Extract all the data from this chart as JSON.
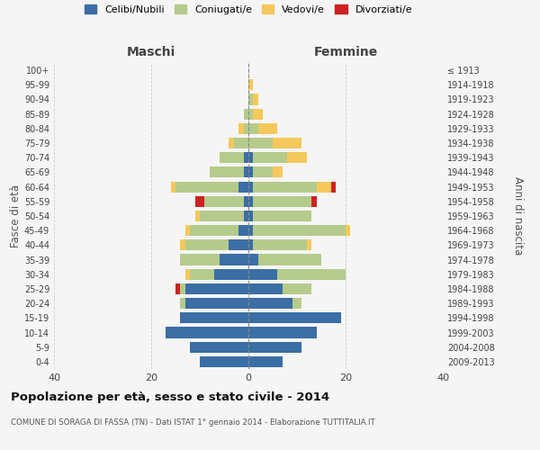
{
  "age_groups": [
    "0-4",
    "5-9",
    "10-14",
    "15-19",
    "20-24",
    "25-29",
    "30-34",
    "35-39",
    "40-44",
    "45-49",
    "50-54",
    "55-59",
    "60-64",
    "65-69",
    "70-74",
    "75-79",
    "80-84",
    "85-89",
    "90-94",
    "95-99",
    "100+"
  ],
  "birth_years": [
    "2009-2013",
    "2004-2008",
    "1999-2003",
    "1994-1998",
    "1989-1993",
    "1984-1988",
    "1979-1983",
    "1974-1978",
    "1969-1973",
    "1964-1968",
    "1959-1963",
    "1954-1958",
    "1949-1953",
    "1944-1948",
    "1939-1943",
    "1934-1938",
    "1929-1933",
    "1924-1928",
    "1919-1923",
    "1914-1918",
    "≤ 1913"
  ],
  "males": {
    "celibi": [
      10,
      12,
      17,
      14,
      13,
      13,
      7,
      6,
      4,
      2,
      1,
      1,
      2,
      1,
      1,
      0,
      0,
      0,
      0,
      0,
      0
    ],
    "coniugati": [
      0,
      0,
      0,
      0,
      1,
      1,
      5,
      8,
      9,
      10,
      9,
      8,
      13,
      7,
      5,
      3,
      1,
      1,
      0,
      0,
      0
    ],
    "vedovi": [
      0,
      0,
      0,
      0,
      0,
      0,
      1,
      0,
      1,
      1,
      1,
      0,
      1,
      0,
      0,
      1,
      1,
      0,
      0,
      0,
      0
    ],
    "divorziati": [
      0,
      0,
      0,
      0,
      0,
      1,
      0,
      0,
      0,
      0,
      0,
      2,
      0,
      0,
      0,
      0,
      0,
      0,
      0,
      0,
      0
    ]
  },
  "females": {
    "nubili": [
      7,
      11,
      14,
      19,
      9,
      7,
      6,
      2,
      1,
      1,
      1,
      1,
      1,
      1,
      1,
      0,
      0,
      0,
      0,
      0,
      0
    ],
    "coniugate": [
      0,
      0,
      0,
      0,
      2,
      6,
      14,
      13,
      11,
      19,
      12,
      12,
      13,
      4,
      7,
      5,
      2,
      1,
      1,
      0,
      0
    ],
    "vedove": [
      0,
      0,
      0,
      0,
      0,
      0,
      0,
      0,
      1,
      1,
      0,
      0,
      3,
      2,
      4,
      6,
      4,
      2,
      1,
      1,
      0
    ],
    "divorziate": [
      0,
      0,
      0,
      0,
      0,
      0,
      0,
      0,
      0,
      0,
      0,
      1,
      1,
      0,
      0,
      0,
      0,
      0,
      0,
      0,
      0
    ]
  },
  "colors": {
    "celibi": "#3a6ea5",
    "coniugati": "#b5cb8b",
    "vedovi": "#f5c85c",
    "divorziati": "#cc2222"
  },
  "xlim": 40,
  "title": "Popolazione per età, sesso e stato civile - 2014",
  "subtitle": "COMUNE DI SORAGA DI FASSA (TN) - Dati ISTAT 1° gennaio 2014 - Elaborazione TUTTITALIA.IT",
  "ylabel_left": "Fasce di età",
  "ylabel_right": "Anni di nascita",
  "legend_labels": [
    "Celibi/Nubili",
    "Coniugati/e",
    "Vedovi/e",
    "Divorziati/e"
  ],
  "maschi_label": "Maschi",
  "femmine_label": "Femmine",
  "bg_color": "#f5f5f5",
  "grid_color": "#cccccc"
}
